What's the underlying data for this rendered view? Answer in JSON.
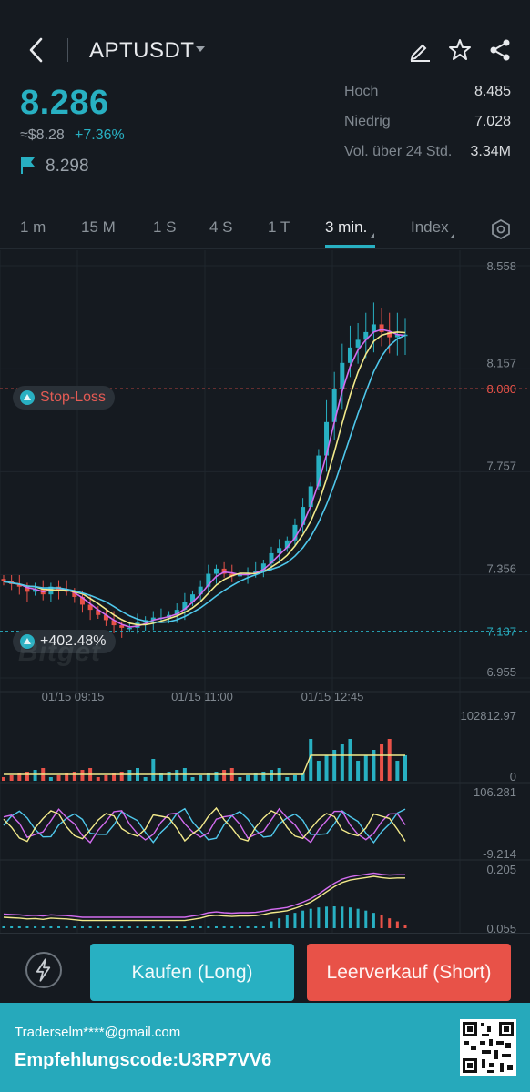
{
  "header": {
    "symbol": "APTUSDT",
    "price": "8.286",
    "usd_price": "≈$8.28",
    "change": "+7.36%",
    "mark_price": "8.298",
    "stats": [
      {
        "label": "Hoch",
        "value": "8.485"
      },
      {
        "label": "Niedrig",
        "value": "7.028"
      },
      {
        "label": "Vol. über 24 Std.",
        "value": "3.34M"
      }
    ]
  },
  "tabs": [
    {
      "label": "1 m"
    },
    {
      "label": "15 M"
    },
    {
      "label": "1 S"
    },
    {
      "label": "4 S"
    },
    {
      "label": "1 T"
    },
    {
      "label": "3 min."
    },
    {
      "label": "Index"
    }
  ],
  "active_tab": "3 min.",
  "chart_data": {
    "type": "line",
    "price_axis_ticks": [
      "8.558",
      "8.157",
      "7.757",
      "7.356",
      "6.955"
    ],
    "time_axis_ticks": [
      "01/15 09:15",
      "01/15 11:00",
      "01/15 12:45"
    ],
    "stop_loss": {
      "label": "Stop-Loss",
      "price": "8.080",
      "value": 8.08
    },
    "entry": {
      "label": "+402.48%",
      "price": "7.137",
      "value": 7.137
    },
    "ylim": [
      6.955,
      8.558
    ],
    "close": [
      7.33,
      7.32,
      7.31,
      7.29,
      7.3,
      7.28,
      7.31,
      7.3,
      7.29,
      7.27,
      7.24,
      7.22,
      7.2,
      7.18,
      7.16,
      7.15,
      7.15,
      7.17,
      7.18,
      7.19,
      7.19,
      7.2,
      7.22,
      7.25,
      7.28,
      7.31,
      7.36,
      7.38,
      7.36,
      7.35,
      7.36,
      7.36,
      7.37,
      7.4,
      7.44,
      7.46,
      7.49,
      7.55,
      7.62,
      7.7,
      7.82,
      7.95,
      8.08,
      8.18,
      8.24,
      8.27,
      8.3,
      8.33,
      8.3,
      8.28,
      8.29,
      8.29
    ],
    "volume_axis_ticks": [
      "102812.97",
      "0"
    ],
    "indicator1_axis_ticks": [
      "106.281",
      "-9.214"
    ],
    "indicator2_axis_ticks": [
      "0.205",
      "0.055"
    ],
    "colors": {
      "up": "#28b0c2",
      "down": "#e85248",
      "ma_fast": "#d36cf0",
      "ma_mid": "#f2e98a",
      "ma_slow": "#4fc8ec"
    }
  },
  "actions": {
    "long_label": "Kaufen (Long)",
    "short_label": "Leerverkauf (Short)"
  },
  "footer": {
    "email": "Traderselm****@gmail.com",
    "referral": "Empfehlungscode:U3RP7VV6"
  },
  "watermark": "Bitget"
}
